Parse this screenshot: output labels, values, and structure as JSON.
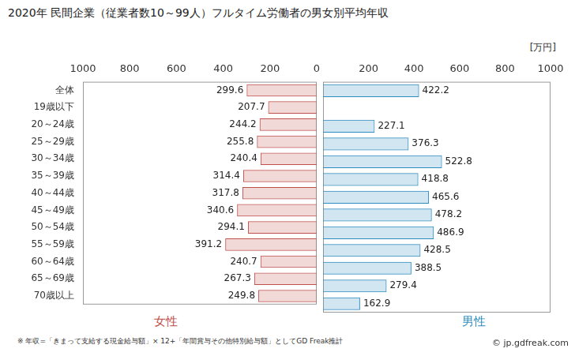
{
  "chart_data": {
    "type": "bar",
    "orientation": "horizontal",
    "title": "2020年 民間企業（従業者数10～99人）フルタイム労働者の男女別平均年収",
    "xlabel": "[万円]",
    "categories": [
      "全体",
      "19歳以下",
      "20～24歳",
      "25～29歳",
      "30～34歳",
      "35～39歳",
      "40～44歳",
      "45～49歳",
      "50～54歳",
      "55～59歳",
      "60～64歳",
      "65～69歳",
      "70歳以上"
    ],
    "series": [
      {
        "name": "女性",
        "color": "#c0504d",
        "values": [
          299.6,
          207.7,
          244.2,
          255.8,
          240.4,
          314.4,
          317.8,
          340.6,
          294.1,
          391.2,
          240.7,
          267.3,
          249.8
        ]
      },
      {
        "name": "男性",
        "color": "#2e8bc0",
        "values": [
          422.2,
          null,
          227.1,
          376.3,
          522.8,
          418.8,
          465.6,
          478.2,
          486.9,
          428.5,
          388.5,
          279.4,
          162.9
        ]
      }
    ],
    "xlim": [
      0,
      1000
    ],
    "xticks": [
      0,
      200,
      400,
      600,
      800,
      1000
    ],
    "data_labels": true,
    "grid": false,
    "annotations": [
      "※ 年収=「きまって支給する現金給与額」× 12+「年間賞与その他特別給与額」としてGD Freak推計",
      "© jp.gdfreak.com"
    ]
  }
}
